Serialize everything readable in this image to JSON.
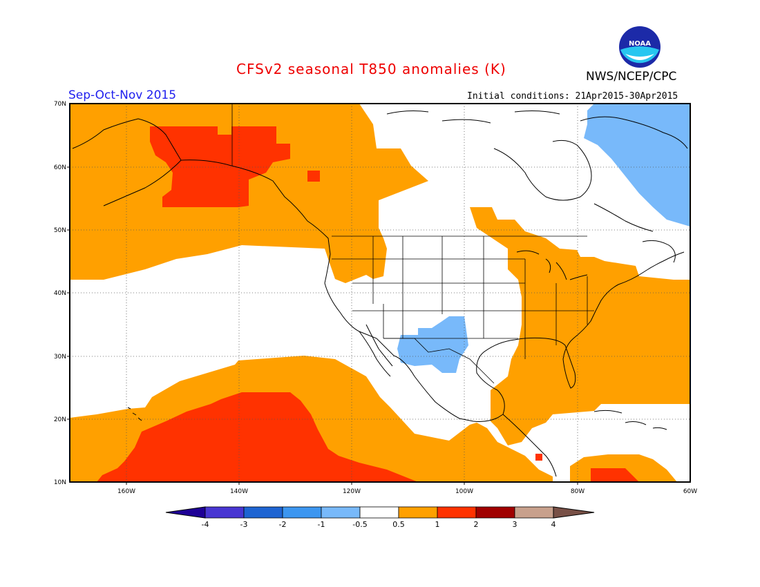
{
  "header": {
    "title": "CFSv2 seasonal T850 anomalies (K)",
    "period": "Sep-Oct-Nov 2015",
    "agency": "NWS/NCEP/CPC",
    "initial_conditions": "Initial conditions: 21Apr2015-30Apr2015",
    "logo_text": "NOAA"
  },
  "axes": {
    "lat_labels": [
      "70N",
      "60N",
      "50N",
      "40N",
      "30N",
      "20N",
      "10N"
    ],
    "lon_labels": [
      "160W",
      "140W",
      "120W",
      "100W",
      "80W",
      "60W"
    ]
  },
  "colorbar": {
    "labels": [
      "-4",
      "-3",
      "-2",
      "-1",
      "-0.5",
      "0.5",
      "1",
      "2",
      "3",
      "4"
    ],
    "colors": {
      "lt_neg4": "#1e0096",
      "neg4_neg3": "#4836d2",
      "neg3_neg2": "#1e64d2",
      "neg2_neg1": "#3c96f0",
      "neg1_neg05": "#78b9fa",
      "neutral": "#ffffff",
      "p05_p1": "#ffa000",
      "p1_p2": "#ff3200",
      "p2_p3": "#a00000",
      "p3_p4": "#c8a08c",
      "gt_p4": "#785046"
    }
  },
  "anomaly_regions": [
    {
      "name": "north-pacific-alaska-warm",
      "level": "0.5 to 1"
    },
    {
      "name": "alaska-bering-warm-core",
      "level": "1 to 2"
    },
    {
      "name": "eastern-us-warm",
      "level": "0.5 to 1"
    },
    {
      "name": "tropical-pacific-warm",
      "level": "0.5 to 1"
    },
    {
      "name": "tropical-pacific-warm-core",
      "level": "1 to 2"
    },
    {
      "name": "caribbean-warm",
      "level": "0.5 to 1"
    },
    {
      "name": "caribbean-warm-core",
      "level": "1 to 2"
    },
    {
      "name": "northeast-canada-cool",
      "level": "-1 to -0.5"
    },
    {
      "name": "southwest-us-cool",
      "level": "-1 to -0.5"
    }
  ]
}
